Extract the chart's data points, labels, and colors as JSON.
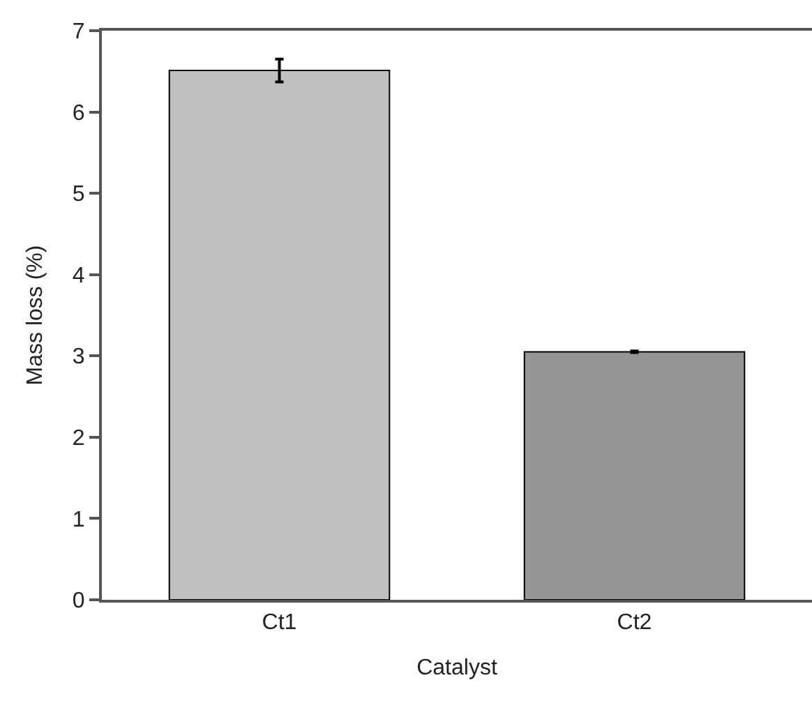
{
  "chart_data": {
    "type": "bar",
    "xlabel": "Catalyst",
    "ylabel": "Mass loss (%)",
    "categories": [
      "Ct1",
      "Ct2"
    ],
    "values": [
      6.51,
      3.05
    ],
    "colors": [
      "#c0c0c0",
      "#969696"
    ],
    "errors": [
      0.14,
      0.01
    ],
    "ylim": [
      0,
      7
    ],
    "yticks": [
      0,
      1,
      2,
      3,
      4,
      5,
      6,
      7
    ],
    "grid": false
  }
}
